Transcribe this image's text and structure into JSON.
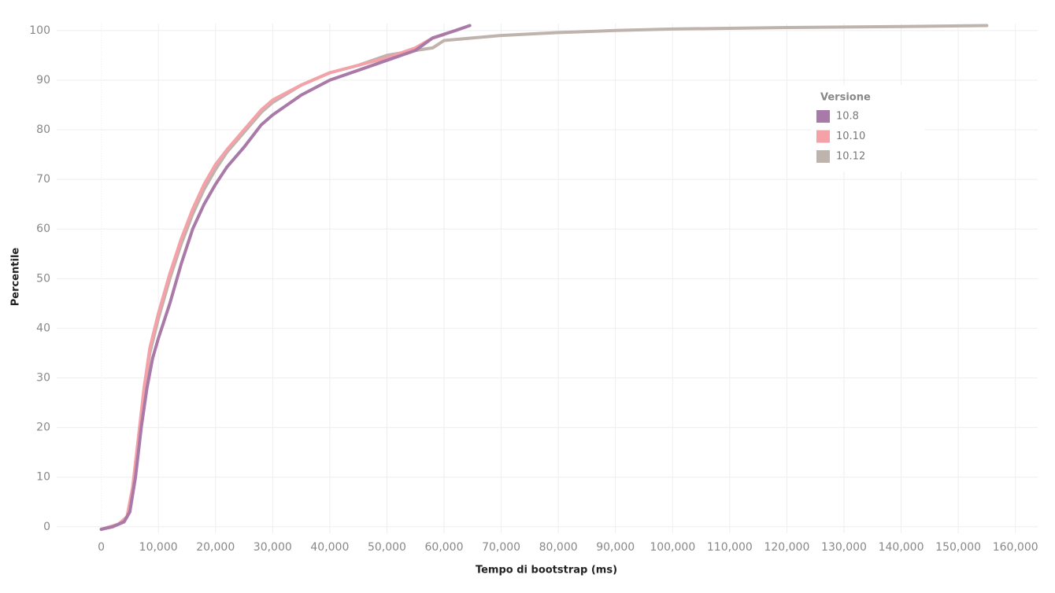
{
  "chart_data": {
    "type": "line",
    "x_label": "Tempo di bootstrap (ms)",
    "y_label": "Percentile",
    "legend_title": "Versione",
    "legend_position": "upper right",
    "grid": true,
    "xlim": [
      -7800,
      163900
    ],
    "ylim": [
      -1.3,
      101.4
    ],
    "xticks": [
      0,
      {
        "value": 10000,
        "label": "10,000"
      },
      {
        "value": 20000,
        "label": "20,000"
      },
      {
        "value": 30000,
        "label": "30,000"
      },
      {
        "value": 40000,
        "label": "40,000"
      },
      {
        "value": 50000,
        "label": "50,000"
      },
      {
        "value": 60000,
        "label": "60,000"
      },
      {
        "value": 70000,
        "label": "70,000"
      },
      {
        "value": 80000,
        "label": "80,000"
      },
      {
        "value": 90000,
        "label": "90,000"
      },
      {
        "value": 100000,
        "label": "100,000"
      },
      {
        "value": 110000,
        "label": "110,000"
      },
      {
        "value": 120000,
        "label": "120,000"
      },
      {
        "value": 130000,
        "label": "130,000"
      },
      {
        "value": 140000,
        "label": "140,000"
      },
      {
        "value": 150000,
        "label": "150,000"
      },
      {
        "value": 160000,
        "label": "160,000"
      }
    ],
    "yticks": [
      0,
      10,
      20,
      30,
      40,
      50,
      60,
      70,
      80,
      90,
      100
    ],
    "series": [
      {
        "name": "10.8",
        "color": "#a979a8",
        "x": [
          0,
          2000,
          4000,
          5000,
          6000,
          7000,
          8000,
          9000,
          10000,
          12000,
          14000,
          16000,
          18000,
          20000,
          22000,
          25000,
          28000,
          30000,
          35000,
          40000,
          45000,
          50000,
          55000,
          58000,
          62000,
          64500
        ],
        "values": [
          -0.5,
          0,
          1,
          3,
          10,
          20,
          28,
          34,
          38,
          45,
          53,
          60,
          65,
          69,
          72.5,
          76.5,
          81,
          83,
          87,
          90,
          92,
          94,
          96,
          98.5,
          100,
          101
        ]
      },
      {
        "name": "10.10",
        "color": "#f4a1a8",
        "x": [
          0,
          3000,
          4500,
          5500,
          6500,
          7500,
          8500,
          10000,
          12000,
          14000,
          16000,
          18000,
          20000,
          22000,
          25000,
          28000,
          30000,
          35000,
          40000,
          45000,
          50000,
          55000,
          58000,
          60000
        ],
        "values": [
          -0.5,
          0.5,
          2,
          8,
          18,
          28,
          36,
          43,
          51,
          58,
          64,
          69,
          73,
          76,
          80,
          84,
          86,
          89,
          91.5,
          93,
          94.5,
          96.5,
          98.5,
          99.2
        ]
      },
      {
        "name": "10.12",
        "color": "#bfb3ad",
        "x": [
          0,
          3000,
          4500,
          5500,
          6500,
          7500,
          8500,
          10000,
          12000,
          14000,
          16000,
          18000,
          20000,
          22000,
          25000,
          28000,
          30000,
          35000,
          40000,
          45000,
          50000,
          55000,
          58000,
          60000,
          65000,
          70000,
          80000,
          90000,
          100000,
          120000,
          140000,
          155000
        ],
        "values": [
          -0.5,
          0.5,
          2,
          7,
          17,
          27,
          35,
          42,
          50,
          57,
          63,
          68,
          72,
          75.5,
          79.5,
          83.5,
          85.5,
          89,
          91.5,
          93,
          95,
          96,
          96.5,
          98,
          98.5,
          99,
          99.6,
          100,
          100.3,
          100.6,
          100.8,
          101
        ]
      }
    ]
  }
}
